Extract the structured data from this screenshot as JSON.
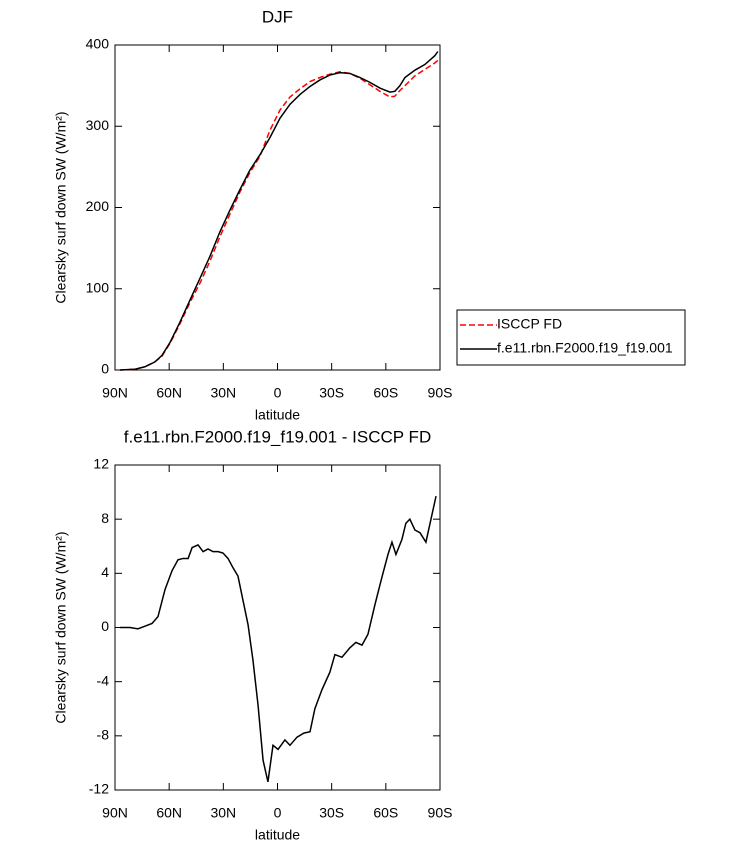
{
  "chart_data": [
    {
      "type": "line",
      "title": "DJF",
      "x_label": "latitude",
      "y_label": "Clearsky surf down SW (W/m²)",
      "x": [
        87.2,
        78.9,
        73.4,
        67.9,
        64.0,
        59.5,
        54.0,
        48.5,
        42.9,
        37.4,
        31.9,
        26.3,
        20.8,
        15.3,
        9.7,
        4.2,
        -1.4,
        -6.9,
        -12.4,
        -18.0,
        -23.5,
        -29.0,
        -34.6,
        -40.1,
        -45.7,
        -51.2,
        -56.7,
        -62.3,
        -65.0,
        -67.8,
        -70.6,
        -76.1,
        -81.6,
        -87.2,
        -88.8
      ],
      "series": [
        {
          "name": "ISCCP FD",
          "color": "#ff0000",
          "dashed": true,
          "values": [
            0,
            1,
            4,
            10,
            17,
            33,
            57,
            83,
            107,
            134,
            164,
            192,
            219,
            243,
            263,
            295,
            320,
            336,
            346,
            355,
            360,
            364,
            367,
            365,
            359,
            351,
            343,
            336,
            337,
            344,
            350,
            362,
            370,
            378,
            381
          ]
        },
        {
          "name": "f.e11.rbn.F2000.f19_f19.001",
          "color": "#000000",
          "dashed": false,
          "values": [
            0,
            1,
            4,
            10,
            18,
            34,
            59,
            86,
            113,
            140,
            170,
            197,
            222,
            246,
            265,
            286,
            310,
            327,
            339,
            349,
            357,
            363,
            366,
            365,
            360,
            354,
            347,
            342,
            343,
            350,
            360,
            369,
            376,
            387,
            392
          ]
        }
      ],
      "xlim": [
        90,
        -90
      ],
      "xticks": [
        {
          "value": 90,
          "label": "90N"
        },
        {
          "value": 60,
          "label": "60N"
        },
        {
          "value": 30,
          "label": "30N"
        },
        0,
        {
          "value": -30,
          "label": "30S"
        },
        {
          "value": -60,
          "label": "60S"
        },
        {
          "value": -90,
          "label": "90S"
        }
      ],
      "ylim": [
        0,
        400
      ],
      "yticks": [
        0,
        100,
        200,
        300,
        400
      ],
      "legend": "right",
      "grid": false
    },
    {
      "type": "line",
      "title": "f.e11.rbn.F2000.f19_f19.001 - ISCCP FD",
      "x_label": "latitude",
      "y_label": "Clearsky surf down SW (W/m²)",
      "x": [
        87.2,
        81.7,
        77.3,
        73.4,
        69.5,
        66.2,
        62.3,
        58.4,
        55.1,
        52.3,
        49.5,
        47.3,
        44.0,
        41.2,
        38.5,
        35.7,
        32.9,
        30.2,
        27.4,
        24.6,
        21.9,
        19.1,
        16.3,
        13.6,
        10.8,
        8.0,
        5.3,
        2.5,
        -0.3,
        -4.1,
        -6.9,
        -10.8,
        -14.6,
        -18.0,
        -20.7,
        -24.6,
        -29.0,
        -31.8,
        -35.7,
        -40.1,
        -43.4,
        -46.8,
        -50.1,
        -54.0,
        -57.8,
        -61.2,
        -63.4,
        -65.6,
        -68.9,
        -71.1,
        -73.3,
        -76.1,
        -78.9,
        -82.2,
        -85.0,
        -87.8
      ],
      "series": [
        {
          "color": "#000000",
          "dashed": false,
          "values": [
            0,
            0,
            -0.1,
            0.1,
            0.3,
            0.8,
            2.8,
            4.2,
            5.0,
            5.1,
            5.1,
            5.9,
            6.1,
            5.6,
            5.8,
            5.6,
            5.6,
            5.5,
            5.1,
            4.4,
            3.8,
            2.0,
            0.2,
            -2.4,
            -5.7,
            -9.8,
            -11.4,
            -8.7,
            -9.0,
            -8.3,
            -8.7,
            -8.1,
            -7.8,
            -7.7,
            -6.0,
            -4.6,
            -3.3,
            -2.0,
            -2.2,
            -1.5,
            -1.1,
            -1.3,
            -0.5,
            1.7,
            3.7,
            5.4,
            6.3,
            5.4,
            6.5,
            7.7,
            8.0,
            7.2,
            7.0,
            6.3,
            8.0,
            9.7
          ]
        }
      ],
      "xlim": [
        90,
        -90
      ],
      "xticks": [
        {
          "value": 90,
          "label": "90N"
        },
        {
          "value": 60,
          "label": "60N"
        },
        {
          "value": 30,
          "label": "30N"
        },
        0,
        {
          "value": -30,
          "label": "30S"
        },
        {
          "value": -60,
          "label": "60S"
        },
        {
          "value": -90,
          "label": "90S"
        }
      ],
      "ylim": [
        -12,
        12
      ],
      "yticks": [
        -12,
        -8,
        -4,
        0,
        4,
        8,
        12
      ],
      "grid": false
    }
  ]
}
